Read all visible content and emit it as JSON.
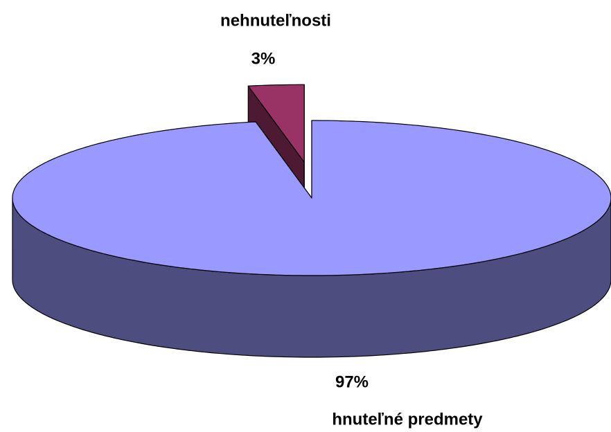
{
  "chart_data": {
    "type": "pie",
    "three_d": true,
    "categories": [
      "hnuteľné predmety",
      "nehnuteľnosti"
    ],
    "values": [
      97,
      3
    ],
    "value_labels": [
      "97%",
      "3%"
    ],
    "colors": [
      "#9999ff",
      "#993366"
    ],
    "side_colors": [
      "#4d4d80",
      "#4d1933"
    ]
  }
}
